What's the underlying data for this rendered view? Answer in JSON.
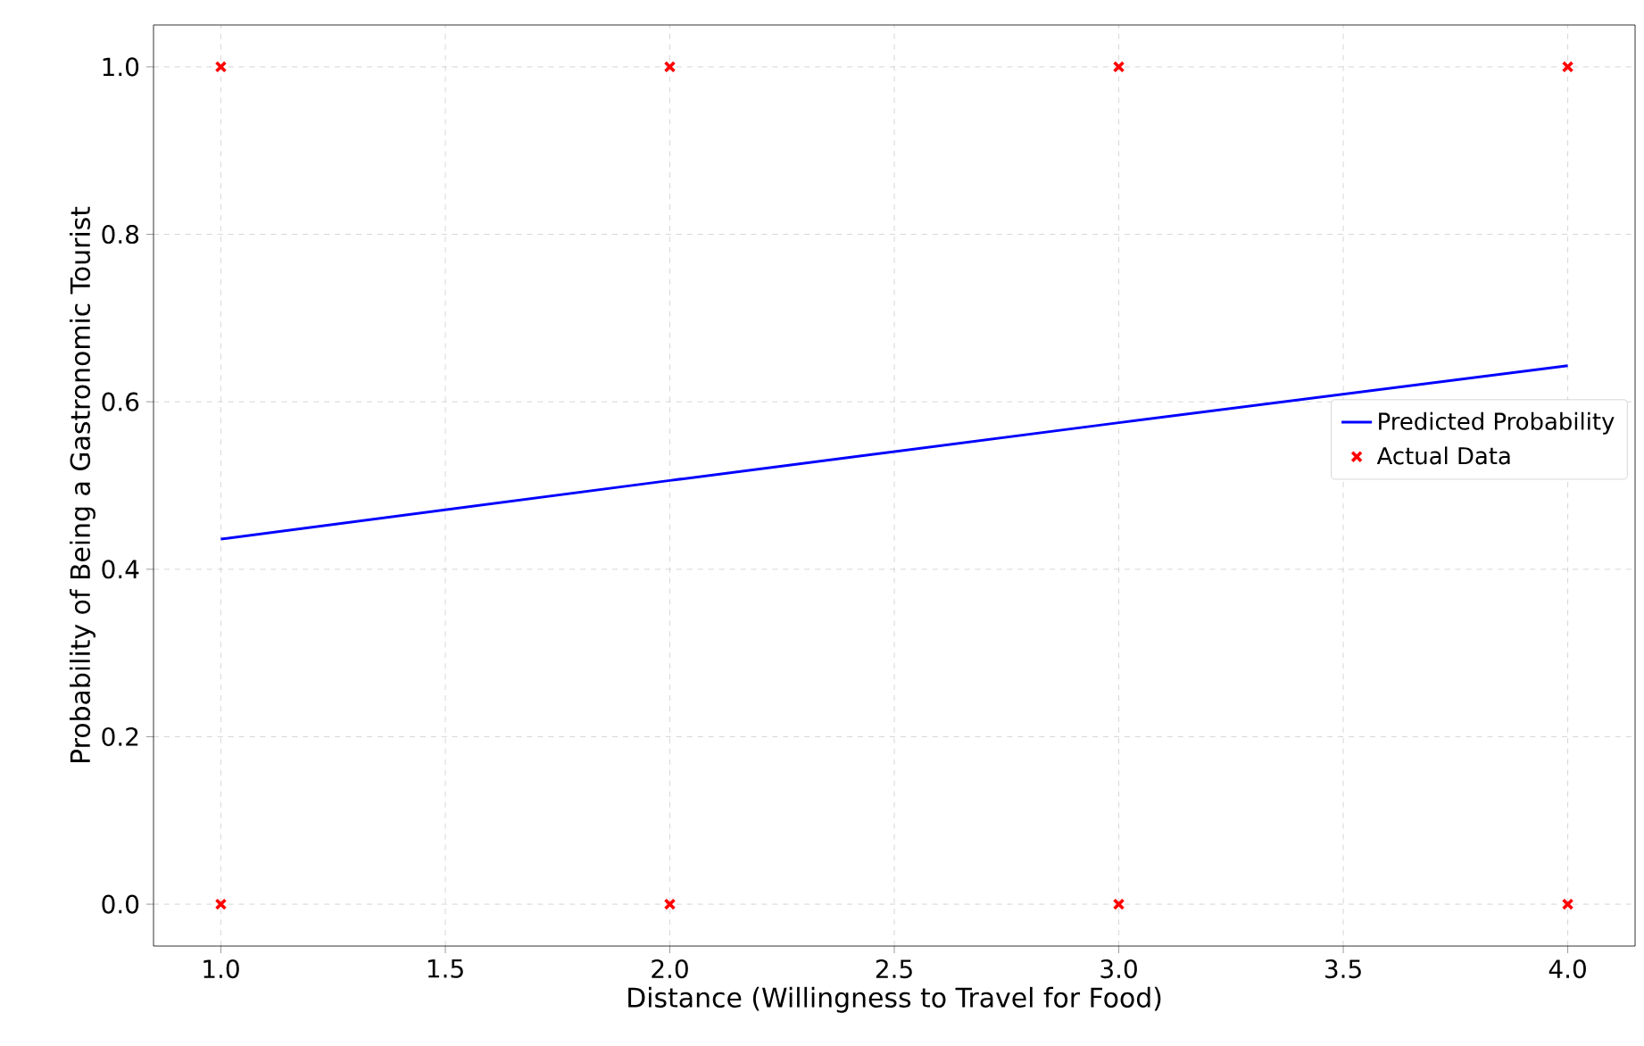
{
  "chart_data": {
    "type": "scatter",
    "xlabel": "Distance (Willingness to Travel for Food)",
    "ylabel": "Probability of Being a Gastronomic Tourist",
    "xlim": [
      0.85,
      4.15
    ],
    "ylim": [
      -0.05,
      1.05
    ],
    "xticks": [
      {
        "value": 1.0,
        "label": "1.0"
      },
      {
        "value": 1.5,
        "label": "1.5"
      },
      {
        "value": 2.0,
        "label": "2.0"
      },
      {
        "value": 2.5,
        "label": "2.5"
      },
      {
        "value": 3.0,
        "label": "3.0"
      },
      {
        "value": 3.5,
        "label": "3.5"
      },
      {
        "value": 4.0,
        "label": "4.0"
      }
    ],
    "yticks": [
      {
        "value": 0.0,
        "label": "0.0"
      },
      {
        "value": 0.2,
        "label": "0.2"
      },
      {
        "value": 0.4,
        "label": "0.4"
      },
      {
        "value": 0.6,
        "label": "0.6"
      },
      {
        "value": 0.8,
        "label": "0.8"
      },
      {
        "value": 1.0,
        "label": "1.0"
      }
    ],
    "grid": true,
    "legend": "right",
    "series": [
      {
        "name": "Predicted Probability",
        "type": "line",
        "color": "#0000ff",
        "marker": "none",
        "line_style": "solid",
        "x": [
          1,
          2,
          3,
          4
        ],
        "values": [
          0.436,
          0.506,
          0.575,
          0.643
        ]
      },
      {
        "name": "Actual Data",
        "color": "#ff0000",
        "marker": "cross",
        "x": [
          1,
          2,
          3,
          4,
          1,
          2,
          3,
          4
        ],
        "values": [
          1,
          1,
          1,
          1,
          0,
          0,
          0,
          0
        ]
      }
    ]
  }
}
